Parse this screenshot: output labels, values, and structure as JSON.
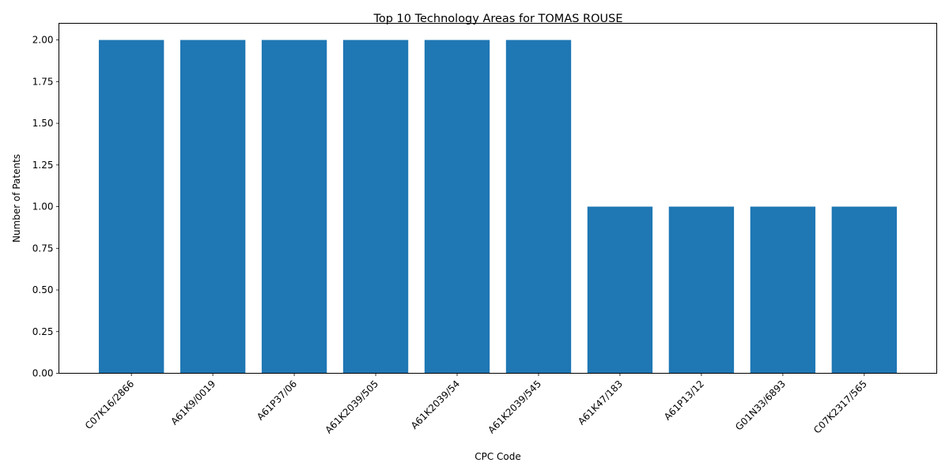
{
  "chart_data": {
    "type": "bar",
    "title": "Top 10 Technology Areas for TOMAS ROUSE",
    "xlabel": "CPC Code",
    "ylabel": "Number of Patents",
    "categories": [
      "C07K16/2866",
      "A61K9/0019",
      "A61P37/06",
      "A61K2039/505",
      "A61K2039/54",
      "A61K2039/545",
      "A61K47/183",
      "A61P13/12",
      "G01N33/6893",
      "C07K2317/565"
    ],
    "values": [
      2,
      2,
      2,
      2,
      2,
      2,
      1,
      1,
      1,
      1
    ],
    "ylim": [
      0,
      2.1
    ],
    "yticks": [
      "0.00",
      "0.25",
      "0.50",
      "0.75",
      "1.00",
      "1.25",
      "1.50",
      "1.75",
      "2.00"
    ],
    "bar_color": "#1f77b4",
    "grid": false
  }
}
